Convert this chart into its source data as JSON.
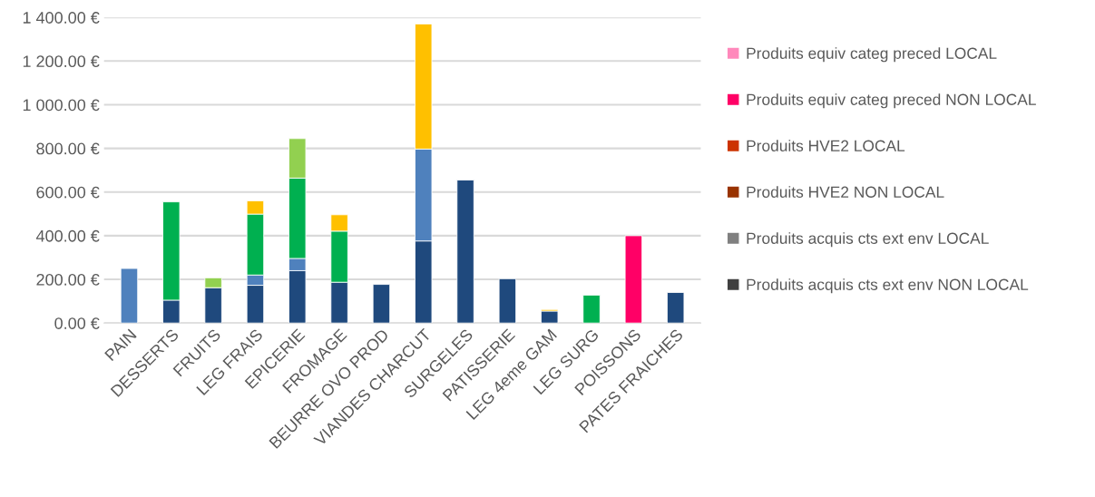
{
  "chart_data": {
    "type": "bar",
    "stacked": true,
    "categories": [
      "PAIN",
      "DESSERTS",
      "FRUITS",
      "LEG FRAIS",
      "EPICERIE",
      "FROMAGE",
      "BEURRE OVO PROD",
      "VIANDES CHARCUT",
      "SURGELES",
      "PATISSERIE",
      "LEG 4eme GAM",
      "LEG SURG",
      "POISSONS",
      "PATES FRAICHES"
    ],
    "series": [
      {
        "color": "#1f497d",
        "values": [
          null,
          105,
          162,
          173,
          240,
          187,
          177,
          376,
          655,
          203,
          55,
          null,
          null,
          140
        ]
      },
      {
        "color": "#4f81bd",
        "values": [
          250,
          null,
          null,
          47,
          56,
          null,
          null,
          421,
          null,
          null,
          null,
          null,
          null,
          null
        ]
      },
      {
        "color": "#00b050",
        "values": [
          null,
          450,
          null,
          279,
          368,
          234,
          null,
          null,
          null,
          null,
          null,
          128,
          null,
          null
        ]
      },
      {
        "color": "#92d050",
        "values": [
          null,
          null,
          45,
          null,
          181,
          null,
          null,
          null,
          null,
          null,
          null,
          null,
          null,
          null
        ]
      },
      {
        "color": "#ffc000",
        "values": [
          null,
          null,
          null,
          61,
          null,
          75,
          null,
          573,
          null,
          null,
          7,
          null,
          null,
          null
        ]
      },
      {
        "name": "Produits equiv categ preced LOCAL",
        "color": "#ff88bb",
        "values": [
          null,
          null,
          null,
          null,
          null,
          null,
          null,
          null,
          null,
          null,
          null,
          null,
          null,
          null
        ]
      },
      {
        "name": "Produits equiv categ preced NON LOCAL",
        "color": "#ff0066",
        "values": [
          null,
          null,
          null,
          null,
          null,
          null,
          null,
          null,
          null,
          null,
          null,
          null,
          400,
          null
        ]
      },
      {
        "name": "Produits HVE2 LOCAL",
        "color": "#cc3300",
        "values": [
          null,
          null,
          null,
          null,
          null,
          null,
          null,
          null,
          null,
          null,
          null,
          null,
          null,
          null
        ]
      },
      {
        "name": "Produits HVE2 NON LOCAL",
        "color": "#993300",
        "values": [
          null,
          null,
          null,
          null,
          null,
          null,
          null,
          null,
          null,
          null,
          null,
          null,
          null,
          null
        ]
      },
      {
        "name": "Produits acquis cts ext env LOCAL",
        "color": "#808080",
        "values": [
          null,
          null,
          null,
          null,
          null,
          null,
          null,
          null,
          null,
          null,
          null,
          null,
          null,
          null
        ]
      },
      {
        "name": "Produits acquis cts ext env NON LOCAL",
        "color": "#404040",
        "values": [
          null,
          null,
          null,
          null,
          null,
          null,
          null,
          null,
          null,
          null,
          null,
          null,
          null,
          null
        ]
      }
    ],
    "ylim": [
      0,
      1400
    ],
    "yticks": [
      {
        "value": 0,
        "label": "0.00 €"
      },
      {
        "value": 200,
        "label": "200.00 €"
      },
      {
        "value": 400,
        "label": "400.00 €"
      },
      {
        "value": 600,
        "label": "600.00 €"
      },
      {
        "value": 800,
        "label": "800.00 €"
      },
      {
        "value": 1000,
        "label": "1 000.00 €"
      },
      {
        "value": 1200,
        "label": "1 200.00 €"
      },
      {
        "value": 1400,
        "label": "1 400.00 €"
      }
    ],
    "grid": "y",
    "legend": "right"
  }
}
